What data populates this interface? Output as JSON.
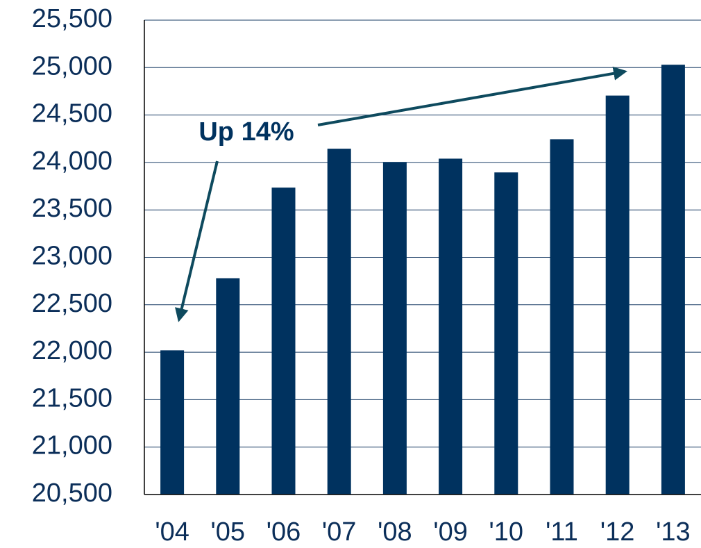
{
  "chart_data": {
    "type": "bar",
    "annotation": "Up 14%",
    "categories": [
      "'04",
      "'05",
      "'06",
      "'07",
      "'08",
      "'09",
      "'10",
      "'11",
      "'12",
      "'13"
    ],
    "values": [
      22020,
      22780,
      23735,
      24145,
      24005,
      24040,
      23895,
      24245,
      24705,
      25030
    ],
    "color": "#00325f",
    "ylim": [
      20500,
      25500
    ],
    "yticks": [
      {
        "value": 20500,
        "label": "20,500"
      },
      {
        "value": 21000,
        "label": "21,000"
      },
      {
        "value": 21500,
        "label": "21,500"
      },
      {
        "value": 22000,
        "label": "22,000"
      },
      {
        "value": 22500,
        "label": "22,500"
      },
      {
        "value": 23000,
        "label": "23,000"
      },
      {
        "value": 23500,
        "label": "23,500"
      },
      {
        "value": 24000,
        "label": "24,000"
      },
      {
        "value": 24500,
        "label": "24,500"
      },
      {
        "value": 25000,
        "label": "25,000"
      },
      {
        "value": 25500,
        "label": "25,500"
      }
    ],
    "grid": true
  }
}
